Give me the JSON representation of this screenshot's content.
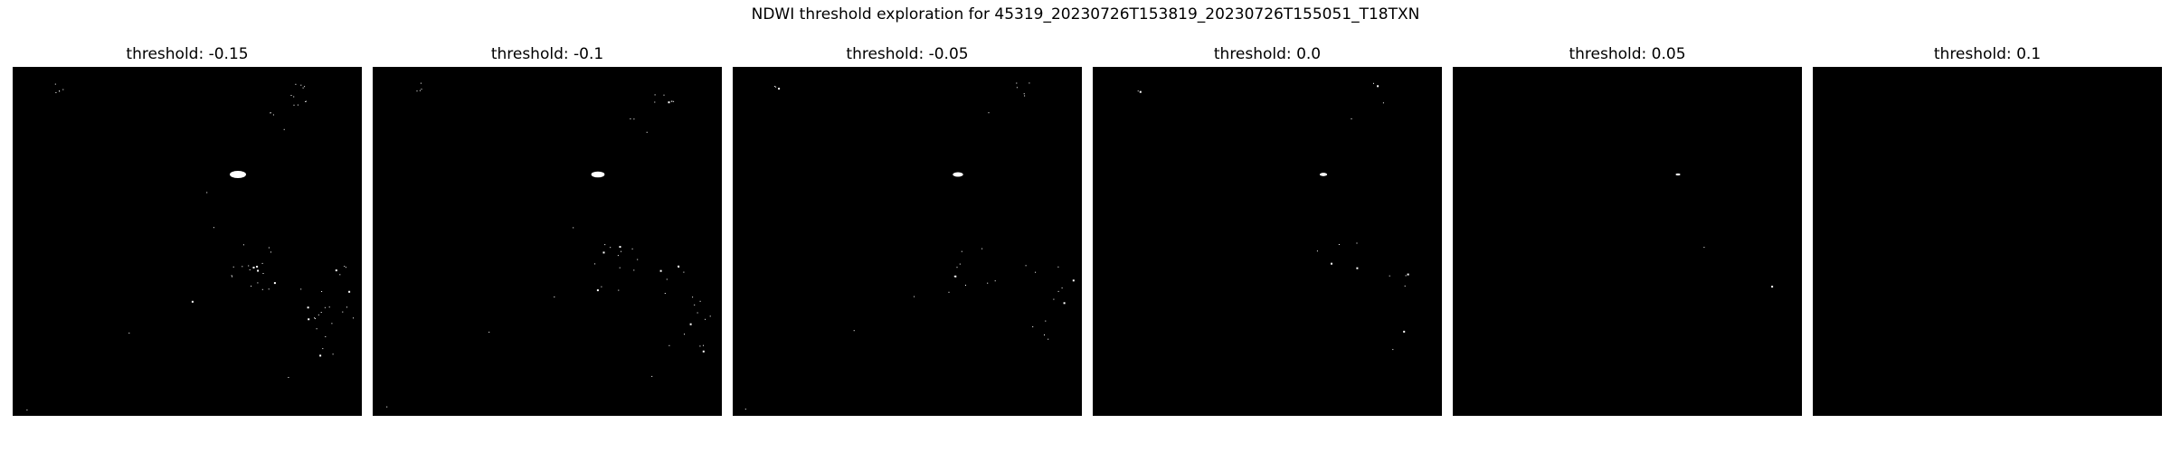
{
  "figure": {
    "title": "NDWI threshold exploration for 45319_20230726T153819_20230726T155051_T18TXN"
  },
  "panels": [
    {
      "title": "threshold: -0.15",
      "threshold": -0.15
    },
    {
      "title": "threshold: -0.1",
      "threshold": -0.1
    },
    {
      "title": "threshold: -0.05",
      "threshold": -0.05
    },
    {
      "title": "threshold: 0.0",
      "threshold": 0.0
    },
    {
      "title": "threshold: 0.05",
      "threshold": 0.05
    },
    {
      "title": "threshold: 0.1",
      "threshold": 0.1
    }
  ],
  "colors": {
    "background": "#000000",
    "water": "#ffffff"
  }
}
